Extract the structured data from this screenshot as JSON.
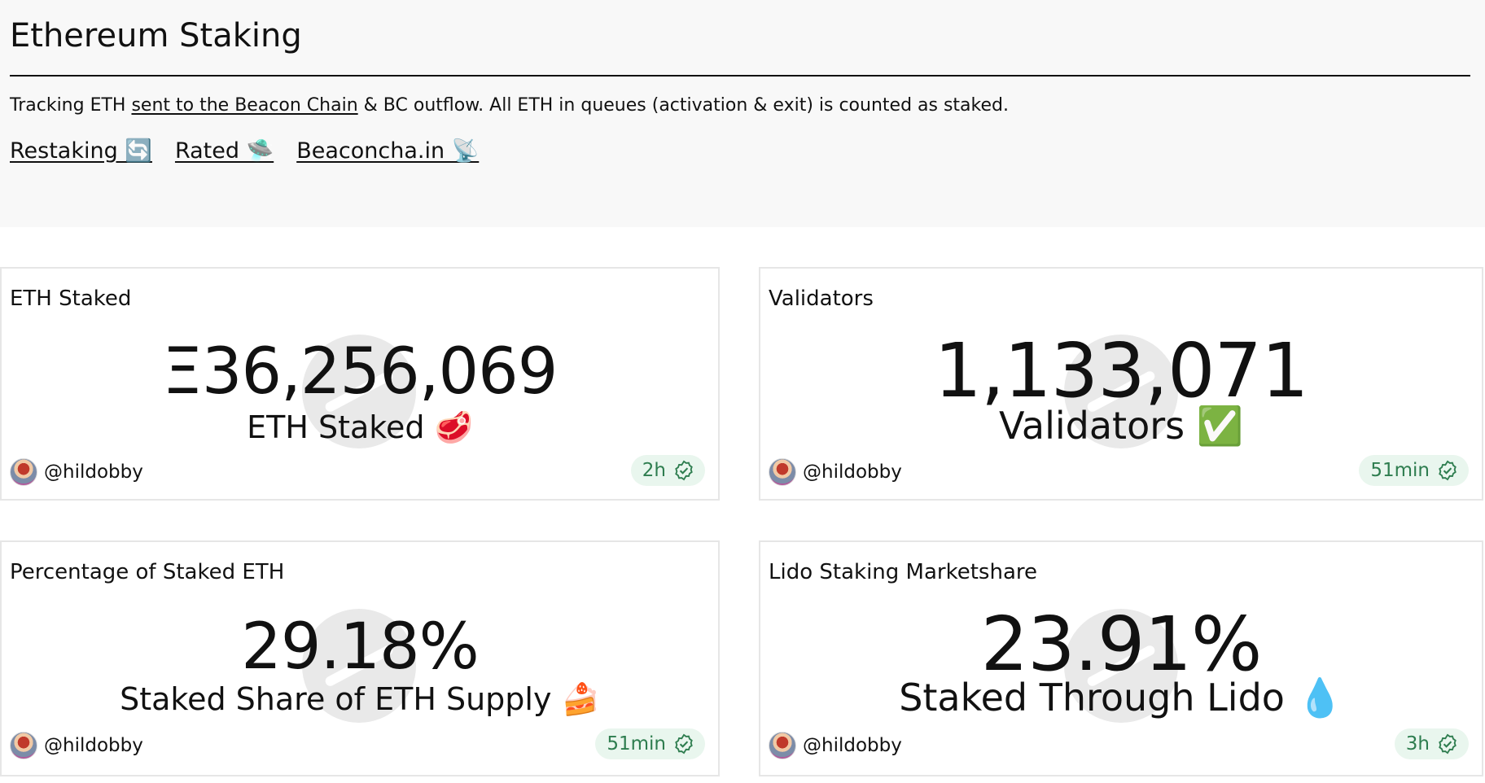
{
  "header": {
    "title": "Ethereum Staking",
    "description": {
      "prefix": "Tracking ETH ",
      "link": "sent to the Beacon Chain",
      "suffix": " & BC outflow. All ETH in queues (activation & exit) is counted as staked."
    },
    "links": [
      "Restaking 🔄",
      "Rated 🛸",
      "Beaconcha.in 📡"
    ]
  },
  "cards": [
    {
      "title": "ETH Staked",
      "value": "Ξ36,256,069",
      "subtitle": "ETH Staked 🥩",
      "author": "@hildobby",
      "age": "2h"
    },
    {
      "title": "Validators",
      "value": "1,133,071",
      "subtitle": "Validators ✅",
      "author": "@hildobby",
      "age": "51min"
    },
    {
      "title": "Percentage of Staked ETH",
      "value": "29.18%",
      "subtitle": "Staked Share of ETH Supply 🍰",
      "author": "@hildobby",
      "age": "51min"
    },
    {
      "title": "Lido Staking Marketshare",
      "value": "23.91%",
      "subtitle": "Staked Through Lido 💧",
      "author": "@hildobby",
      "age": "3h"
    }
  ],
  "icons": {
    "watermark": "dune-logo-watermark",
    "badge": "verified-check-icon"
  },
  "colors": {
    "header_bg": "#f8f8f8",
    "badge_bg": "#e9f6ee",
    "badge_text": "#2e7d4f"
  }
}
